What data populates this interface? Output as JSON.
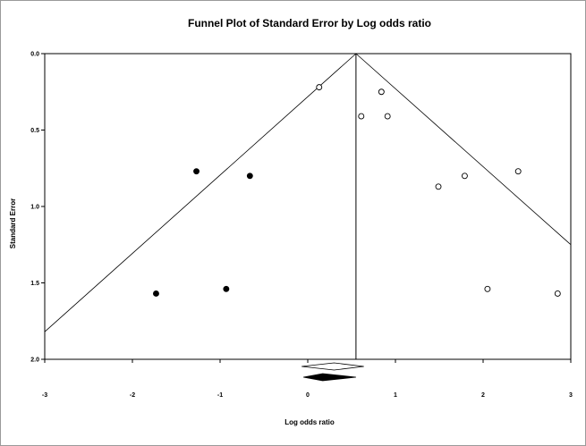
{
  "chart_data": {
    "type": "scatter",
    "title": "Funnel Plot of Standard Error by Log odds ratio",
    "xlabel": "Log odds ratio",
    "ylabel": "Standard Error",
    "xlim": [
      -3,
      3
    ],
    "ylim": [
      2.0,
      0.0
    ],
    "y_inverted": true,
    "x_ticks": [
      "-3",
      "-2",
      "-1",
      "0",
      "1",
      "2",
      "3"
    ],
    "y_ticks": [
      "0.0",
      "0.5",
      "1.0",
      "1.5",
      "2.0"
    ],
    "grid": false,
    "legend": "none",
    "pooled_estimate": 0.55,
    "funnel": {
      "apex": [
        0.55,
        0.0
      ],
      "left_end": [
        -3.0,
        1.82
      ],
      "right_end": [
        3.0,
        1.25
      ]
    },
    "series": [
      {
        "marker": "filled-circle",
        "points": [
          {
            "x": -1.27,
            "y": 0.77
          },
          {
            "x": -0.66,
            "y": 0.8
          },
          {
            "x": -1.73,
            "y": 1.57
          },
          {
            "x": -0.93,
            "y": 1.54
          }
        ]
      },
      {
        "marker": "open-circle",
        "points": [
          {
            "x": 0.13,
            "y": 0.22
          },
          {
            "x": 0.84,
            "y": 0.25
          },
          {
            "x": 0.61,
            "y": 0.41
          },
          {
            "x": 0.91,
            "y": 0.41
          },
          {
            "x": 1.49,
            "y": 0.87
          },
          {
            "x": 1.79,
            "y": 0.8
          },
          {
            "x": 2.4,
            "y": 0.77
          },
          {
            "x": 2.05,
            "y": 1.54
          },
          {
            "x": 2.85,
            "y": 1.57
          }
        ]
      }
    ],
    "diamonds": [
      {
        "marker": "open-diamond",
        "center_x": 0.3,
        "low_x": -0.07,
        "high_x": 0.64
      },
      {
        "marker": "filled-diamond",
        "center_x": 0.17,
        "low_x": -0.05,
        "high_x": 0.55
      }
    ]
  }
}
